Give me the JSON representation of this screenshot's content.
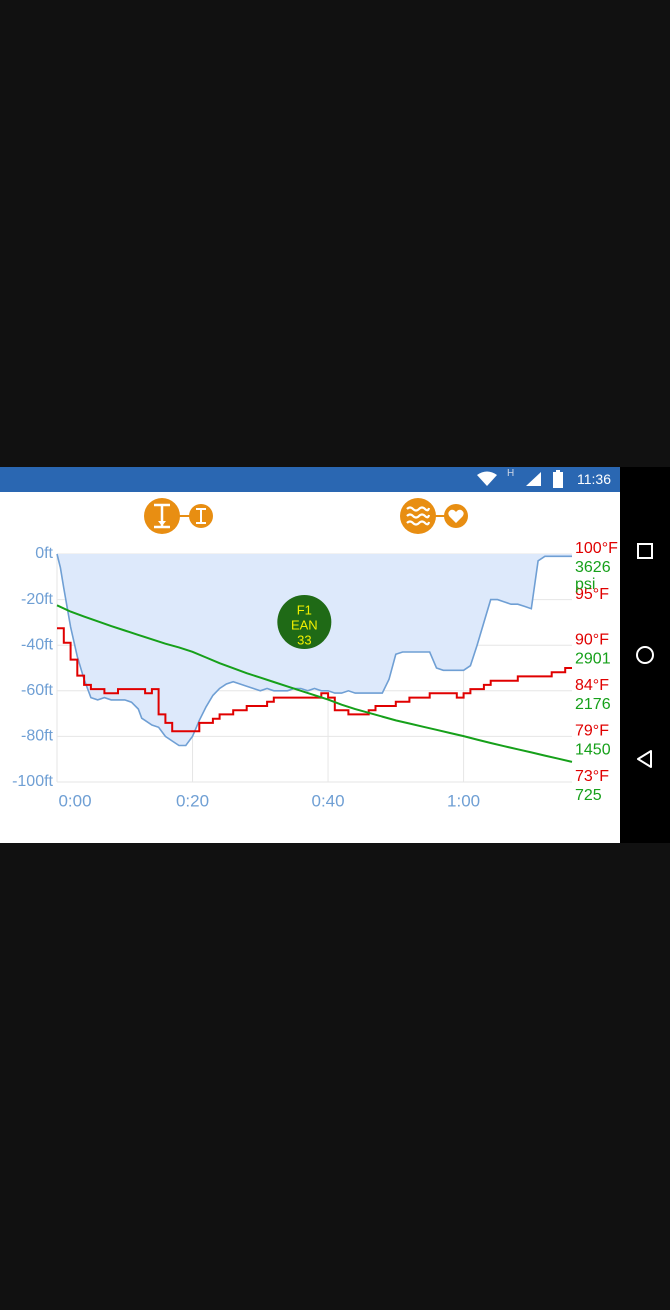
{
  "status_bar": {
    "time": "11:36",
    "network_type": "H",
    "icons": [
      "wifi-icon",
      "cellular-signal-icon",
      "battery-icon"
    ]
  },
  "toolbar": {
    "left_group_icons": [
      "depth-range-icon",
      "depth-toggle-icon"
    ],
    "right_group_icons": [
      "waves-icon",
      "heart-icon"
    ],
    "accent_color": "#e88e12"
  },
  "nav_bar": {
    "buttons": [
      "recents-square-icon",
      "home-circle-icon",
      "back-triangle-icon"
    ]
  },
  "colors": {
    "depth": "#6f9fd4",
    "depth_fill": "#dde9fb",
    "temperature": "#e00000",
    "pressure": "#16a01a",
    "gas_badge": "#1f6a16",
    "gas_badge_text": "#f2f000",
    "axis_text": "#6f9fd4"
  },
  "chart_data": {
    "type": "line",
    "xlabel": "",
    "ylabel": "",
    "x_ticks": [
      "0:00",
      "0:20",
      "0:40",
      "1:00"
    ],
    "xlim": [
      0,
      76
    ],
    "y_ticks_left": [
      "0ft",
      "-20ft",
      "-40ft",
      "-60ft",
      "-80ft",
      "-100ft"
    ],
    "ylim": [
      -100,
      0
    ],
    "y_ticks_right_temp": [
      "100°F",
      "95°F",
      "90°F",
      "84°F",
      "79°F",
      "73°F"
    ],
    "y_ticks_right_pressure": [
      "3626",
      "psi",
      "2901",
      "2176",
      "1450",
      "725"
    ],
    "grid": true,
    "gas_marker": {
      "lines": [
        "F1",
        "EAN",
        "33"
      ],
      "time": 36.5
    },
    "series": [
      {
        "key": "depth",
        "x": [
          0,
          0.5,
          1,
          2,
          3,
          4,
          5,
          6,
          7,
          8,
          9,
          10,
          11,
          12,
          12.5,
          13,
          14,
          15,
          16,
          17,
          18,
          19,
          20,
          21,
          22,
          23,
          24,
          25,
          26,
          27,
          28,
          29,
          30,
          31,
          32,
          33,
          34,
          35,
          36,
          37,
          38,
          39,
          40,
          41,
          42,
          43,
          44,
          45,
          46,
          47,
          48,
          49,
          50,
          51,
          52,
          53,
          54,
          55,
          56,
          57,
          58,
          59,
          60,
          61,
          62,
          63,
          64,
          65,
          66,
          67,
          68,
          69,
          70,
          71,
          72,
          73,
          74,
          75,
          76
        ],
        "y": [
          0,
          -6,
          -15,
          -32,
          -45,
          -55,
          -63,
          -64,
          -63,
          -64,
          -64,
          -64,
          -65,
          -68,
          -72,
          -73,
          -75,
          -76,
          -80,
          -82,
          -84,
          -84,
          -80,
          -73,
          -67,
          -62,
          -59,
          -57,
          -56,
          -57,
          -58,
          -59,
          -60,
          -59,
          -60,
          -60,
          -60,
          -59,
          -59,
          -60,
          -59,
          -60,
          -60,
          -61,
          -61,
          -60,
          -61,
          -61,
          -61,
          -61,
          -61,
          -55,
          -44,
          -43,
          -43,
          -43,
          -43,
          -43,
          -50,
          -51,
          -51,
          -51,
          -51,
          -49,
          -40,
          -30,
          -20,
          -20,
          -21,
          -22,
          -22,
          -23,
          -24,
          -3,
          -1,
          -1,
          -1,
          -1,
          -1
        ]
      },
      {
        "key": "temperature",
        "x": [
          0,
          1,
          2,
          3,
          4,
          5,
          6,
          7,
          8,
          9,
          10,
          11,
          12,
          13,
          14,
          15,
          16,
          17,
          18,
          19,
          20,
          21,
          22,
          23,
          24,
          25,
          26,
          27,
          28,
          29,
          30,
          31,
          32,
          33,
          34,
          35,
          36,
          37,
          38,
          39,
          40,
          41,
          42,
          43,
          44,
          45,
          46,
          47,
          48,
          49,
          50,
          51,
          52,
          53,
          54,
          55,
          56,
          57,
          58,
          59,
          60,
          61,
          62,
          63,
          64,
          65,
          66,
          67,
          68,
          69,
          70,
          71,
          72,
          73,
          74,
          75,
          76
        ],
        "y": [
          91.2,
          89.5,
          87.5,
          85.6,
          84.5,
          84,
          84,
          83.5,
          83.5,
          84,
          84,
          84,
          84,
          83.5,
          84,
          81,
          80,
          79,
          79,
          79,
          79,
          80,
          80,
          80.5,
          81,
          81,
          81.5,
          81.5,
          82,
          82,
          82,
          82.5,
          83,
          83,
          83,
          83,
          83,
          83,
          83,
          83.5,
          83,
          81.5,
          81.5,
          81,
          81,
          81,
          81.5,
          82,
          82,
          82,
          82.5,
          82.5,
          83,
          83,
          83,
          83.5,
          83.5,
          83.5,
          83.5,
          83,
          83.5,
          84,
          84,
          84.5,
          85,
          85,
          85,
          85,
          85.5,
          85.5,
          85.5,
          85.5,
          85.5,
          86,
          86,
          86.5,
          86.5
        ]
      },
      {
        "key": "pressure",
        "x": [
          0,
          2,
          4,
          6,
          8,
          10,
          12,
          14,
          16,
          18,
          20,
          22,
          24,
          26,
          28,
          30,
          32,
          34,
          36,
          38,
          40,
          42,
          44,
          46,
          48,
          50,
          52,
          54,
          56,
          58,
          60,
          62,
          64,
          66,
          68,
          70,
          72,
          74,
          76
        ],
        "y": [
          2810,
          2710,
          2630,
          2555,
          2480,
          2410,
          2340,
          2270,
          2200,
          2140,
          2070,
          1980,
          1890,
          1810,
          1730,
          1660,
          1590,
          1520,
          1450,
          1380,
          1310,
          1230,
          1160,
          1100,
          1040,
          980,
          930,
          880,
          830,
          780,
          730,
          675,
          620,
          570,
          520,
          470,
          420,
          370,
          320
        ]
      }
    ]
  }
}
